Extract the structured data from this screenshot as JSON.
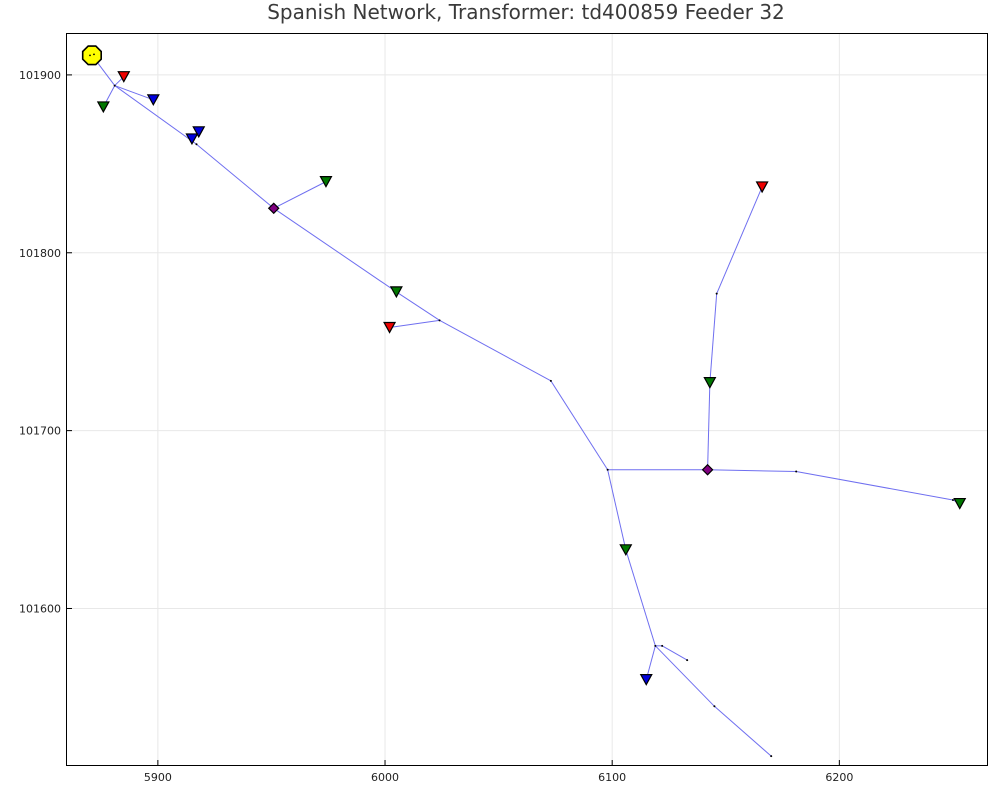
{
  "chart_data": {
    "type": "scatter",
    "title": "Spanish Network, Transformer: td400859 Feeder 32",
    "xlabel": "",
    "ylabel": "",
    "xlim": [
      5860,
      6265
    ],
    "ylim": [
      101512,
      101923
    ],
    "xticks": [
      5900,
      6000,
      6100,
      6200
    ],
    "yticks": [
      101600,
      101700,
      101800,
      101900
    ],
    "xtick_labels": [
      "5900",
      "6000",
      "6100",
      "6200"
    ],
    "ytick_labels": [
      "101600",
      "101700",
      "101800",
      "101900"
    ],
    "grid": true,
    "legend": "none",
    "colors": {
      "edge": "#6f6ff0",
      "red": "#ee0000",
      "green": "#007700",
      "blue": "#0000dd",
      "purple": "#800080",
      "transformer": "#ffff00"
    },
    "edges": [
      [
        [
          5871,
          101911
        ],
        [
          5881,
          101894
        ]
      ],
      [
        [
          5881,
          101894
        ],
        [
          5876,
          101882
        ]
      ],
      [
        [
          5881,
          101894
        ],
        [
          5885,
          101899
        ]
      ],
      [
        [
          5881,
          101894
        ],
        [
          5898,
          101886
        ]
      ],
      [
        [
          5881,
          101894
        ],
        [
          5917,
          101861
        ]
      ],
      [
        [
          5915,
          101864
        ],
        [
          5918,
          101868
        ]
      ],
      [
        [
          5917,
          101861
        ],
        [
          5951,
          101825
        ]
      ],
      [
        [
          5951,
          101825
        ],
        [
          5974,
          101840
        ]
      ],
      [
        [
          5951,
          101825
        ],
        [
          6005,
          101778
        ]
      ],
      [
        [
          6005,
          101778
        ],
        [
          6024,
          101762
        ]
      ],
      [
        [
          6024,
          101762
        ],
        [
          6002,
          101758
        ]
      ],
      [
        [
          6024,
          101762
        ],
        [
          6073,
          101728
        ]
      ],
      [
        [
          6073,
          101728
        ],
        [
          6098,
          101678
        ]
      ],
      [
        [
          6098,
          101678
        ],
        [
          6142,
          101678
        ]
      ],
      [
        [
          6142,
          101678
        ],
        [
          6181,
          101677
        ]
      ],
      [
        [
          6181,
          101677
        ],
        [
          6250,
          101661
        ]
      ],
      [
        [
          6250,
          101661
        ],
        [
          6253,
          101659
        ]
      ],
      [
        [
          6142,
          101678
        ],
        [
          6143,
          101727
        ]
      ],
      [
        [
          6143,
          101727
        ],
        [
          6146,
          101777
        ]
      ],
      [
        [
          6146,
          101777
        ],
        [
          6166,
          101837
        ]
      ],
      [
        [
          6098,
          101678
        ],
        [
          6106,
          101633
        ]
      ],
      [
        [
          6106,
          101633
        ],
        [
          6119,
          101579
        ]
      ],
      [
        [
          6119,
          101579
        ],
        [
          6122,
          101579
        ]
      ],
      [
        [
          6122,
          101579
        ],
        [
          6133,
          101571
        ]
      ],
      [
        [
          6119,
          101579
        ],
        [
          6115,
          101560
        ]
      ],
      [
        [
          6119,
          101579
        ],
        [
          6145,
          101545
        ]
      ],
      [
        [
          6145,
          101545
        ],
        [
          6170,
          101517
        ]
      ]
    ],
    "buses": [
      [
        5881,
        101894
      ],
      [
        5917,
        101861
      ],
      [
        6024,
        101762
      ],
      [
        6073,
        101728
      ],
      [
        6098,
        101678
      ],
      [
        6181,
        101677
      ],
      [
        6250,
        101661
      ],
      [
        6146,
        101777
      ],
      [
        6119,
        101579
      ],
      [
        6122,
        101579
      ],
      [
        6133,
        101571
      ],
      [
        6145,
        101545
      ],
      [
        6170,
        101517
      ]
    ],
    "transformer": {
      "x": 5871,
      "y": 101911,
      "color": "yellow"
    },
    "loads": [
      {
        "x": 5885,
        "y": 101899,
        "color": "red"
      },
      {
        "x": 5876,
        "y": 101882,
        "color": "green"
      },
      {
        "x": 5898,
        "y": 101886,
        "color": "blue"
      },
      {
        "x": 5918,
        "y": 101868,
        "color": "blue"
      },
      {
        "x": 5915,
        "y": 101864,
        "color": "blue"
      },
      {
        "x": 5974,
        "y": 101840,
        "color": "green"
      },
      {
        "x": 6005,
        "y": 101778,
        "color": "green"
      },
      {
        "x": 6002,
        "y": 101758,
        "color": "red"
      },
      {
        "x": 6166,
        "y": 101837,
        "color": "red"
      },
      {
        "x": 6143,
        "y": 101727,
        "color": "green"
      },
      {
        "x": 6253,
        "y": 101659,
        "color": "green"
      },
      {
        "x": 6106,
        "y": 101633,
        "color": "green"
      },
      {
        "x": 6115,
        "y": 101560,
        "color": "blue"
      }
    ],
    "junctions": [
      {
        "x": 5951,
        "y": 101825,
        "color": "purple"
      },
      {
        "x": 6142,
        "y": 101678,
        "color": "purple"
      }
    ]
  }
}
